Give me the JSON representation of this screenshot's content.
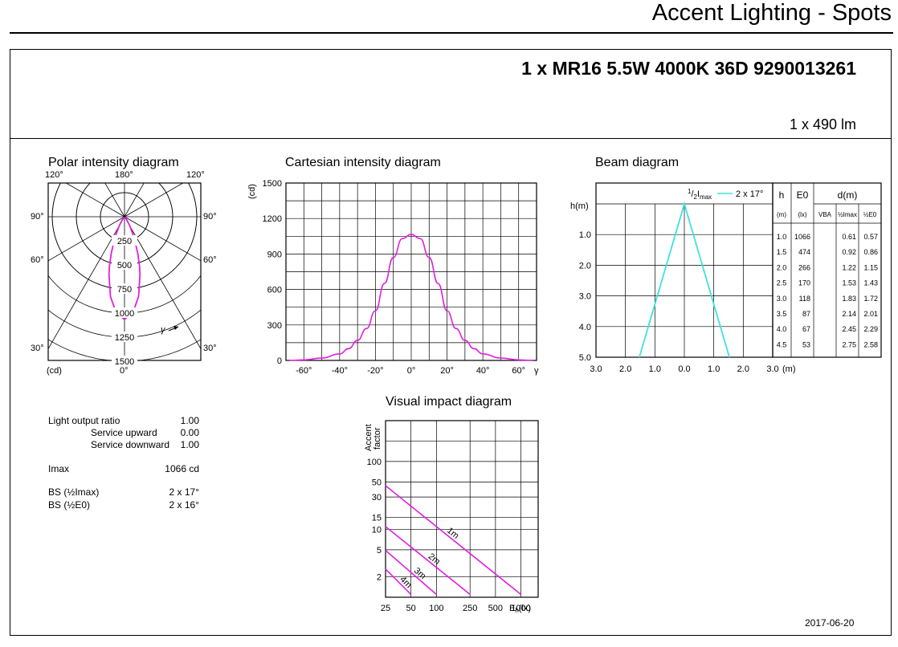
{
  "header": {
    "page_title": "Accent Lighting - Spots",
    "product_title": "1 x MR16 5.5W 4000K 36D 9290013261",
    "flux": "1 x 490 lm",
    "date": "2017-06-20"
  },
  "colors": {
    "curve": "#e020e0",
    "beam": "#40e0e0",
    "grid": "#000000"
  },
  "chart_data": [
    {
      "type": "polar",
      "title": "Polar intensity diagram",
      "unit_label": "(cd)",
      "top_labels": [
        "120°",
        "180°",
        "120°"
      ],
      "side_labels": [
        "90°",
        "60°",
        "30°"
      ],
      "bottom_label": "0°",
      "gamma_label": "γ",
      "radial_ticks": [
        250,
        500,
        750,
        1000,
        1250,
        1500
      ],
      "rlim": [
        0,
        1500
      ],
      "series": [
        {
          "angles_deg": [
            0,
            5,
            10,
            15,
            17,
            20,
            25,
            30,
            35,
            40,
            45
          ],
          "cd": [
            1066,
            1000,
            840,
            620,
            533,
            400,
            230,
            110,
            50,
            20,
            5
          ]
        }
      ]
    },
    {
      "type": "line",
      "title": "Cartesian intensity diagram",
      "ylabel": "(cd)",
      "xlabel": "γ",
      "xlim": [
        -70,
        70
      ],
      "ylim": [
        0,
        1500
      ],
      "xticks": [
        -60,
        -40,
        -20,
        0,
        20,
        40,
        60
      ],
      "xtick_labels": [
        "-60°",
        "-40°",
        "-20°",
        "0°",
        "20°",
        "40°",
        "60°"
      ],
      "yticks": [
        0,
        300,
        600,
        900,
        1200,
        1500
      ],
      "x": [
        -68,
        -60,
        -50,
        -40,
        -35,
        -30,
        -25,
        -20,
        -15,
        -10,
        -5,
        0,
        5,
        10,
        15,
        20,
        25,
        30,
        35,
        40,
        50,
        60,
        68
      ],
      "values": [
        0,
        5,
        20,
        55,
        100,
        170,
        270,
        420,
        650,
        870,
        1030,
        1066,
        1030,
        870,
        650,
        420,
        270,
        170,
        100,
        55,
        20,
        5,
        0
      ]
    },
    {
      "type": "beam",
      "title": "Beam diagram",
      "ylabel": "h(m)",
      "xlabel": "(m)",
      "legend_label": "2 x 17°",
      "legend_prefix": "½Imax",
      "xticks": [
        -3,
        -2,
        -1,
        0,
        1,
        2,
        3
      ],
      "xtick_labels": [
        "3.0",
        "2.0",
        "1.0",
        "0.0",
        "1.0",
        "2.0",
        "3.0"
      ],
      "yticks": [
        0,
        1,
        2,
        3,
        4,
        5
      ],
      "ytick_labels": [
        "",
        "1.0",
        "2.0",
        "3.0",
        "4.0",
        "5.0"
      ],
      "xlim": [
        -3,
        3
      ],
      "ylim": [
        0,
        5
      ],
      "half_angle_deg": 17,
      "table": {
        "headers": [
          "h",
          "E0",
          "d(m)"
        ],
        "subheaders": [
          "(m)",
          "(lx)",
          "VBA",
          "½Imax",
          "½E0"
        ],
        "rows": [
          [
            "1.0",
            "1066",
            "",
            "0.61",
            "0.57"
          ],
          [
            "1.5",
            "474",
            "",
            "0.92",
            "0.86"
          ],
          [
            "2.0",
            "266",
            "",
            "1.22",
            "1.15"
          ],
          [
            "2.5",
            "170",
            "",
            "1.53",
            "1.43"
          ],
          [
            "3.0",
            "118",
            "",
            "1.83",
            "1.72"
          ],
          [
            "3.5",
            "87",
            "",
            "2.14",
            "2.01"
          ],
          [
            "4.0",
            "67",
            "",
            "2.45",
            "2.29"
          ],
          [
            "4.5",
            "53",
            "",
            "2.75",
            "2.58"
          ]
        ]
      }
    },
    {
      "type": "line",
      "title": "Visual impact diagram",
      "ylabel": "Accent factor",
      "xlabel": "Eh(lx)",
      "x_scale": "log",
      "y_scale": "log",
      "xticks": [
        25,
        50,
        100,
        250,
        500,
        1000
      ],
      "yticks": [
        2,
        5,
        10,
        15,
        30,
        50,
        100
      ],
      "series": [
        {
          "name": "1m",
          "x": [
            25,
            1000
          ],
          "y": [
            44,
            1.1
          ]
        },
        {
          "name": "2m",
          "x": [
            25,
            250
          ],
          "y": [
            11,
            1.1
          ]
        },
        {
          "name": "3m",
          "x": [
            25,
            100
          ],
          "y": [
            4.9,
            1.1
          ]
        },
        {
          "name": "4m",
          "x": [
            25,
            50
          ],
          "y": [
            2.6,
            1.1
          ]
        }
      ]
    }
  ],
  "specs": {
    "light_output_ratio": {
      "label": "Light output ratio",
      "value": "1.00"
    },
    "service_upward": {
      "label": "Service upward",
      "value": "0.00"
    },
    "service_downward": {
      "label": "Service downward",
      "value": "1.00"
    },
    "imax": {
      "label": "Imax",
      "value": "1066 cd"
    },
    "bs_imax": {
      "label": "BS (½Imax)",
      "value": "2 x 17°"
    },
    "bs_e0": {
      "label": "BS (½E0)",
      "value": "2 x 16°"
    }
  }
}
